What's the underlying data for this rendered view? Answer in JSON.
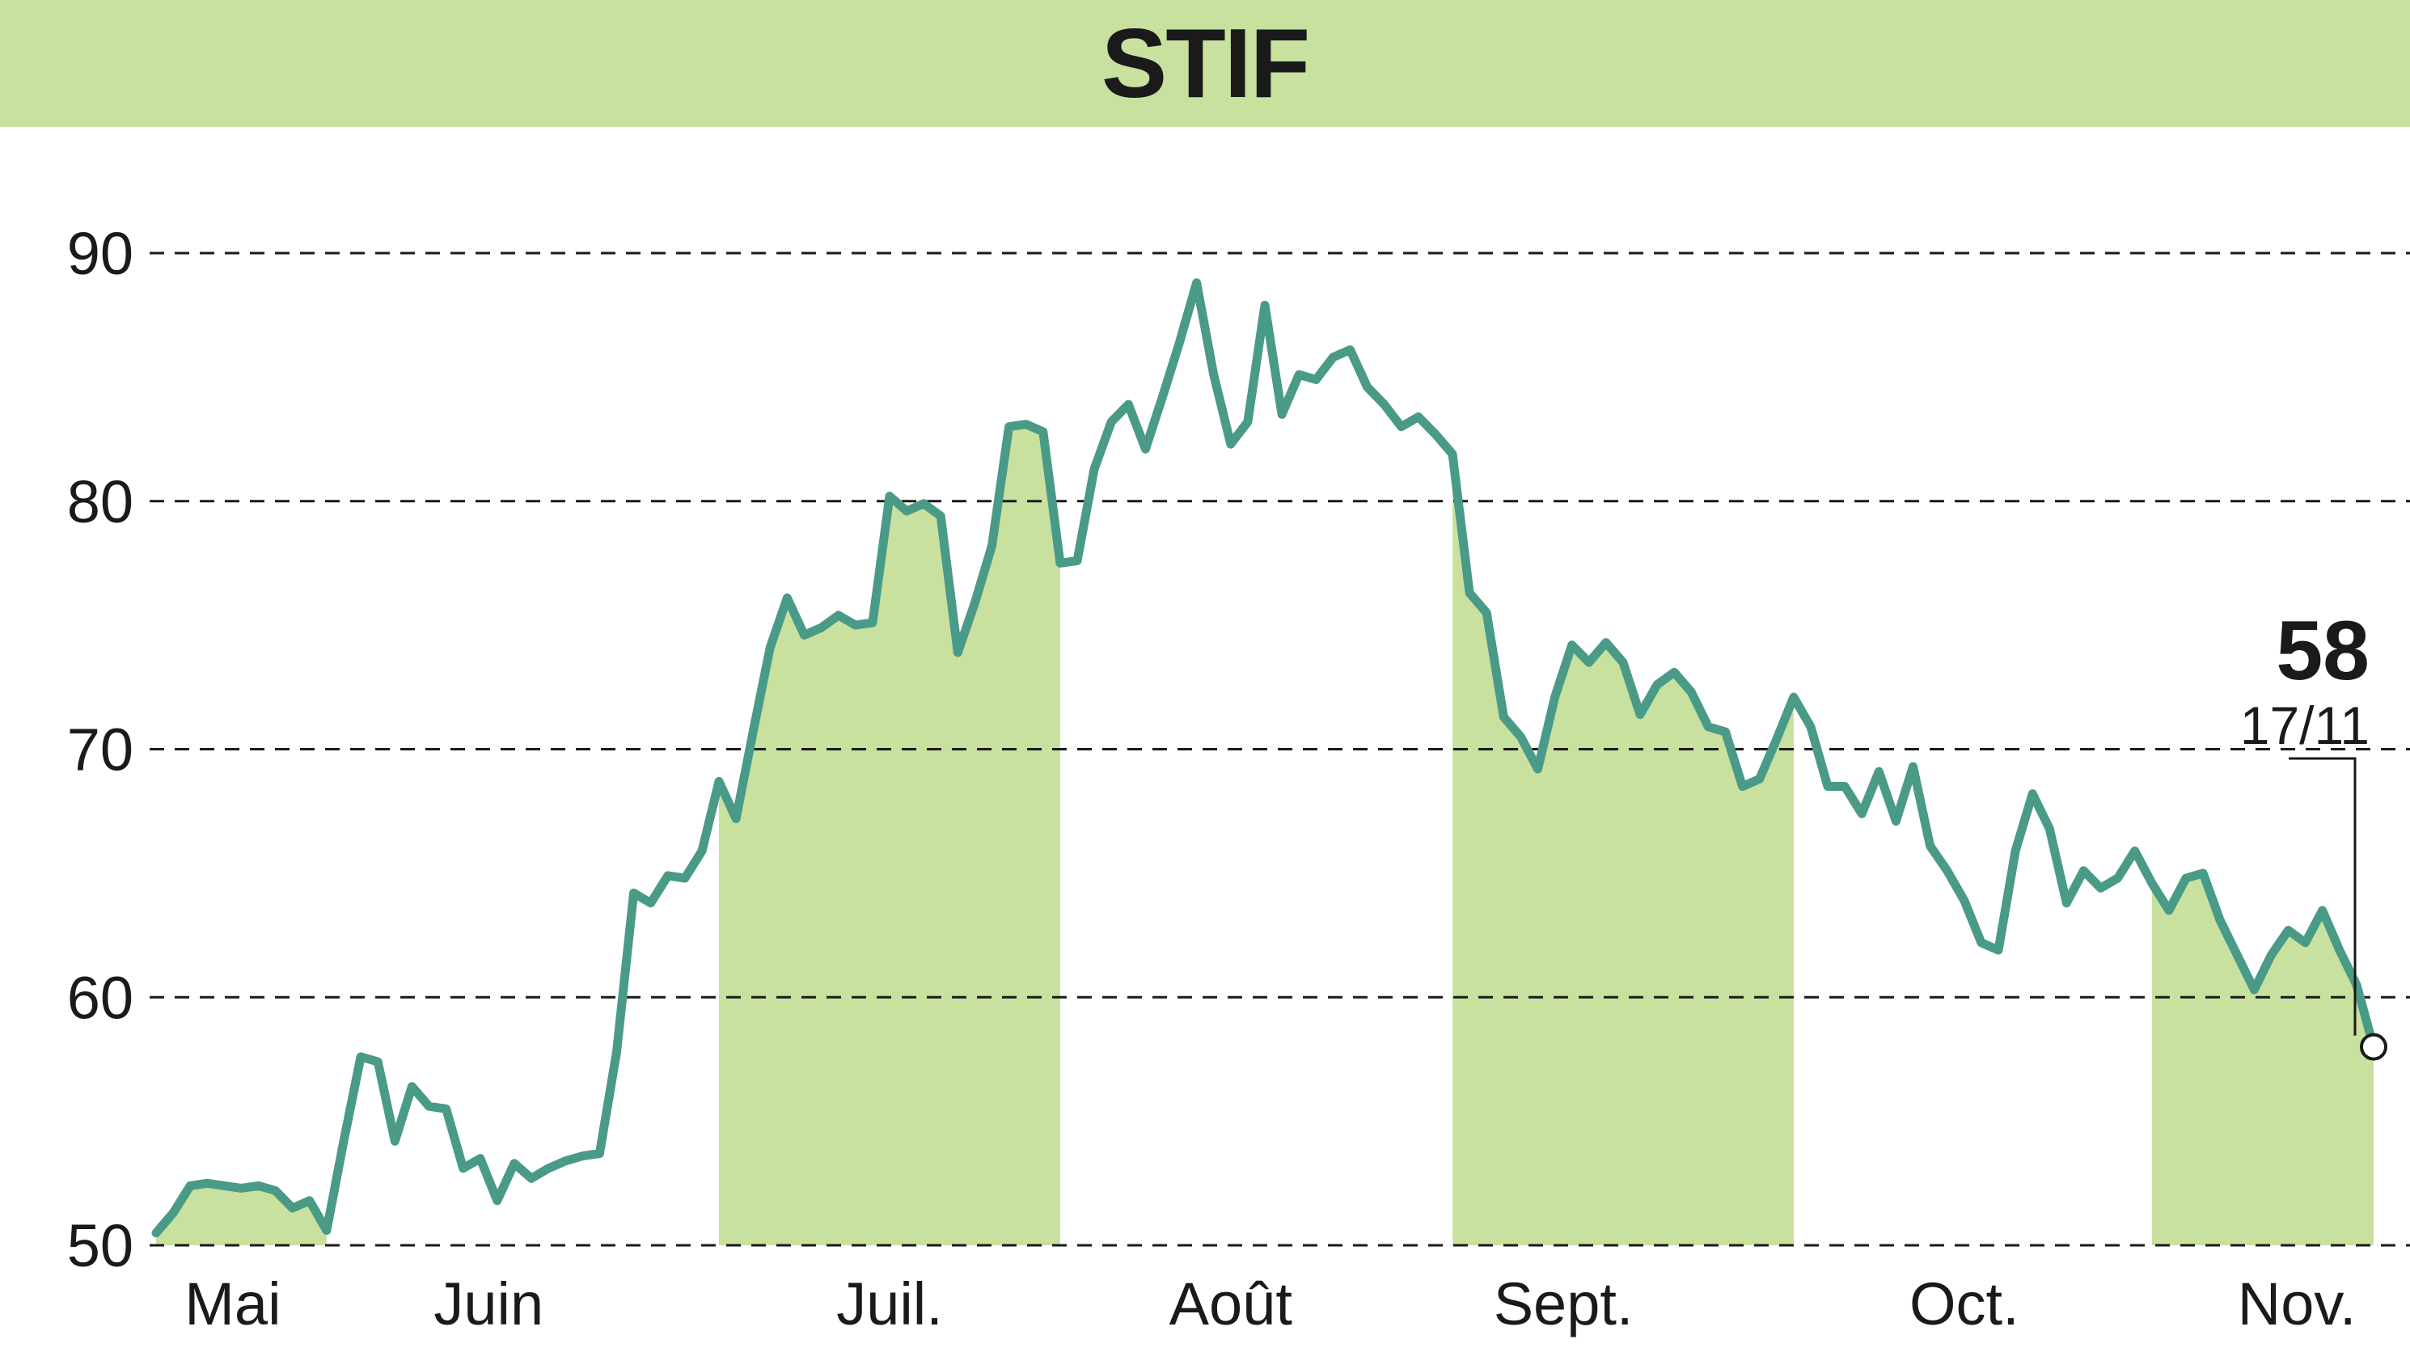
{
  "header": {
    "title": "STIF"
  },
  "colors": {
    "title_band": "#c8e19f",
    "month_band": "#c8e19f",
    "line": "#4a9a88",
    "grid": "#1a1a1a",
    "text": "#1a1a1a"
  },
  "chart_data": {
    "type": "line",
    "title": "STIF",
    "xlabel": "",
    "ylabel": "",
    "ylim": [
      50,
      90
    ],
    "y_ticks": [
      50,
      60,
      70,
      80,
      90
    ],
    "grid": "horizontal dashed",
    "x_ticks": [
      "Mai",
      "Juin",
      "Juil.",
      "Août",
      "Sept.",
      "Oct.",
      "Nov."
    ],
    "last_point": {
      "value_label": "58",
      "date_label": "17/11",
      "value": 58
    },
    "series": [
      {
        "values": [
          50.5,
          51.3,
          52.4,
          52.5,
          52.4,
          52.3,
          52.4,
          52.2,
          51.5,
          51.8,
          50.6,
          54.2,
          57.6,
          57.4,
          54.2,
          56.4,
          55.6,
          55.5,
          53.1,
          53.5,
          51.8,
          53.3,
          52.7,
          53.1,
          53.4,
          53.6,
          53.7,
          57.8,
          64.2,
          63.8,
          64.9,
          64.8,
          65.9,
          68.7,
          67.2,
          70.7,
          74.1,
          76.1,
          74.6,
          74.9,
          75.4,
          75.0,
          75.1,
          80.2,
          79.6,
          79.9,
          79.4,
          73.9,
          75.9,
          78.2,
          83.0,
          83.1,
          82.8,
          77.5,
          77.6,
          81.3,
          83.2,
          83.9,
          82.1,
          84.2,
          86.4,
          88.8,
          85.1,
          82.3,
          83.2,
          87.9,
          83.5,
          85.1,
          84.9,
          85.8,
          86.1,
          84.6,
          83.9,
          83.0,
          83.4,
          82.7,
          81.9,
          76.3,
          75.5,
          71.3,
          70.5,
          69.2,
          72.1,
          74.2,
          73.5,
          74.3,
          73.5,
          71.4,
          72.6,
          73.1,
          72.3,
          70.9,
          70.7,
          68.5,
          68.8,
          70.4,
          72.1,
          70.9,
          68.5,
          68.5,
          67.4,
          69.1,
          67.1,
          69.3,
          66.1,
          65.1,
          63.9,
          62.2,
          61.9,
          65.9,
          68.2,
          66.8,
          63.8,
          65.1,
          64.4,
          64.8,
          65.9,
          64.6,
          63.5,
          64.8,
          65.0,
          63.1,
          61.7,
          60.3,
          61.7,
          62.7,
          62.2,
          63.5,
          61.9,
          60.5,
          58.0
        ]
      }
    ]
  }
}
